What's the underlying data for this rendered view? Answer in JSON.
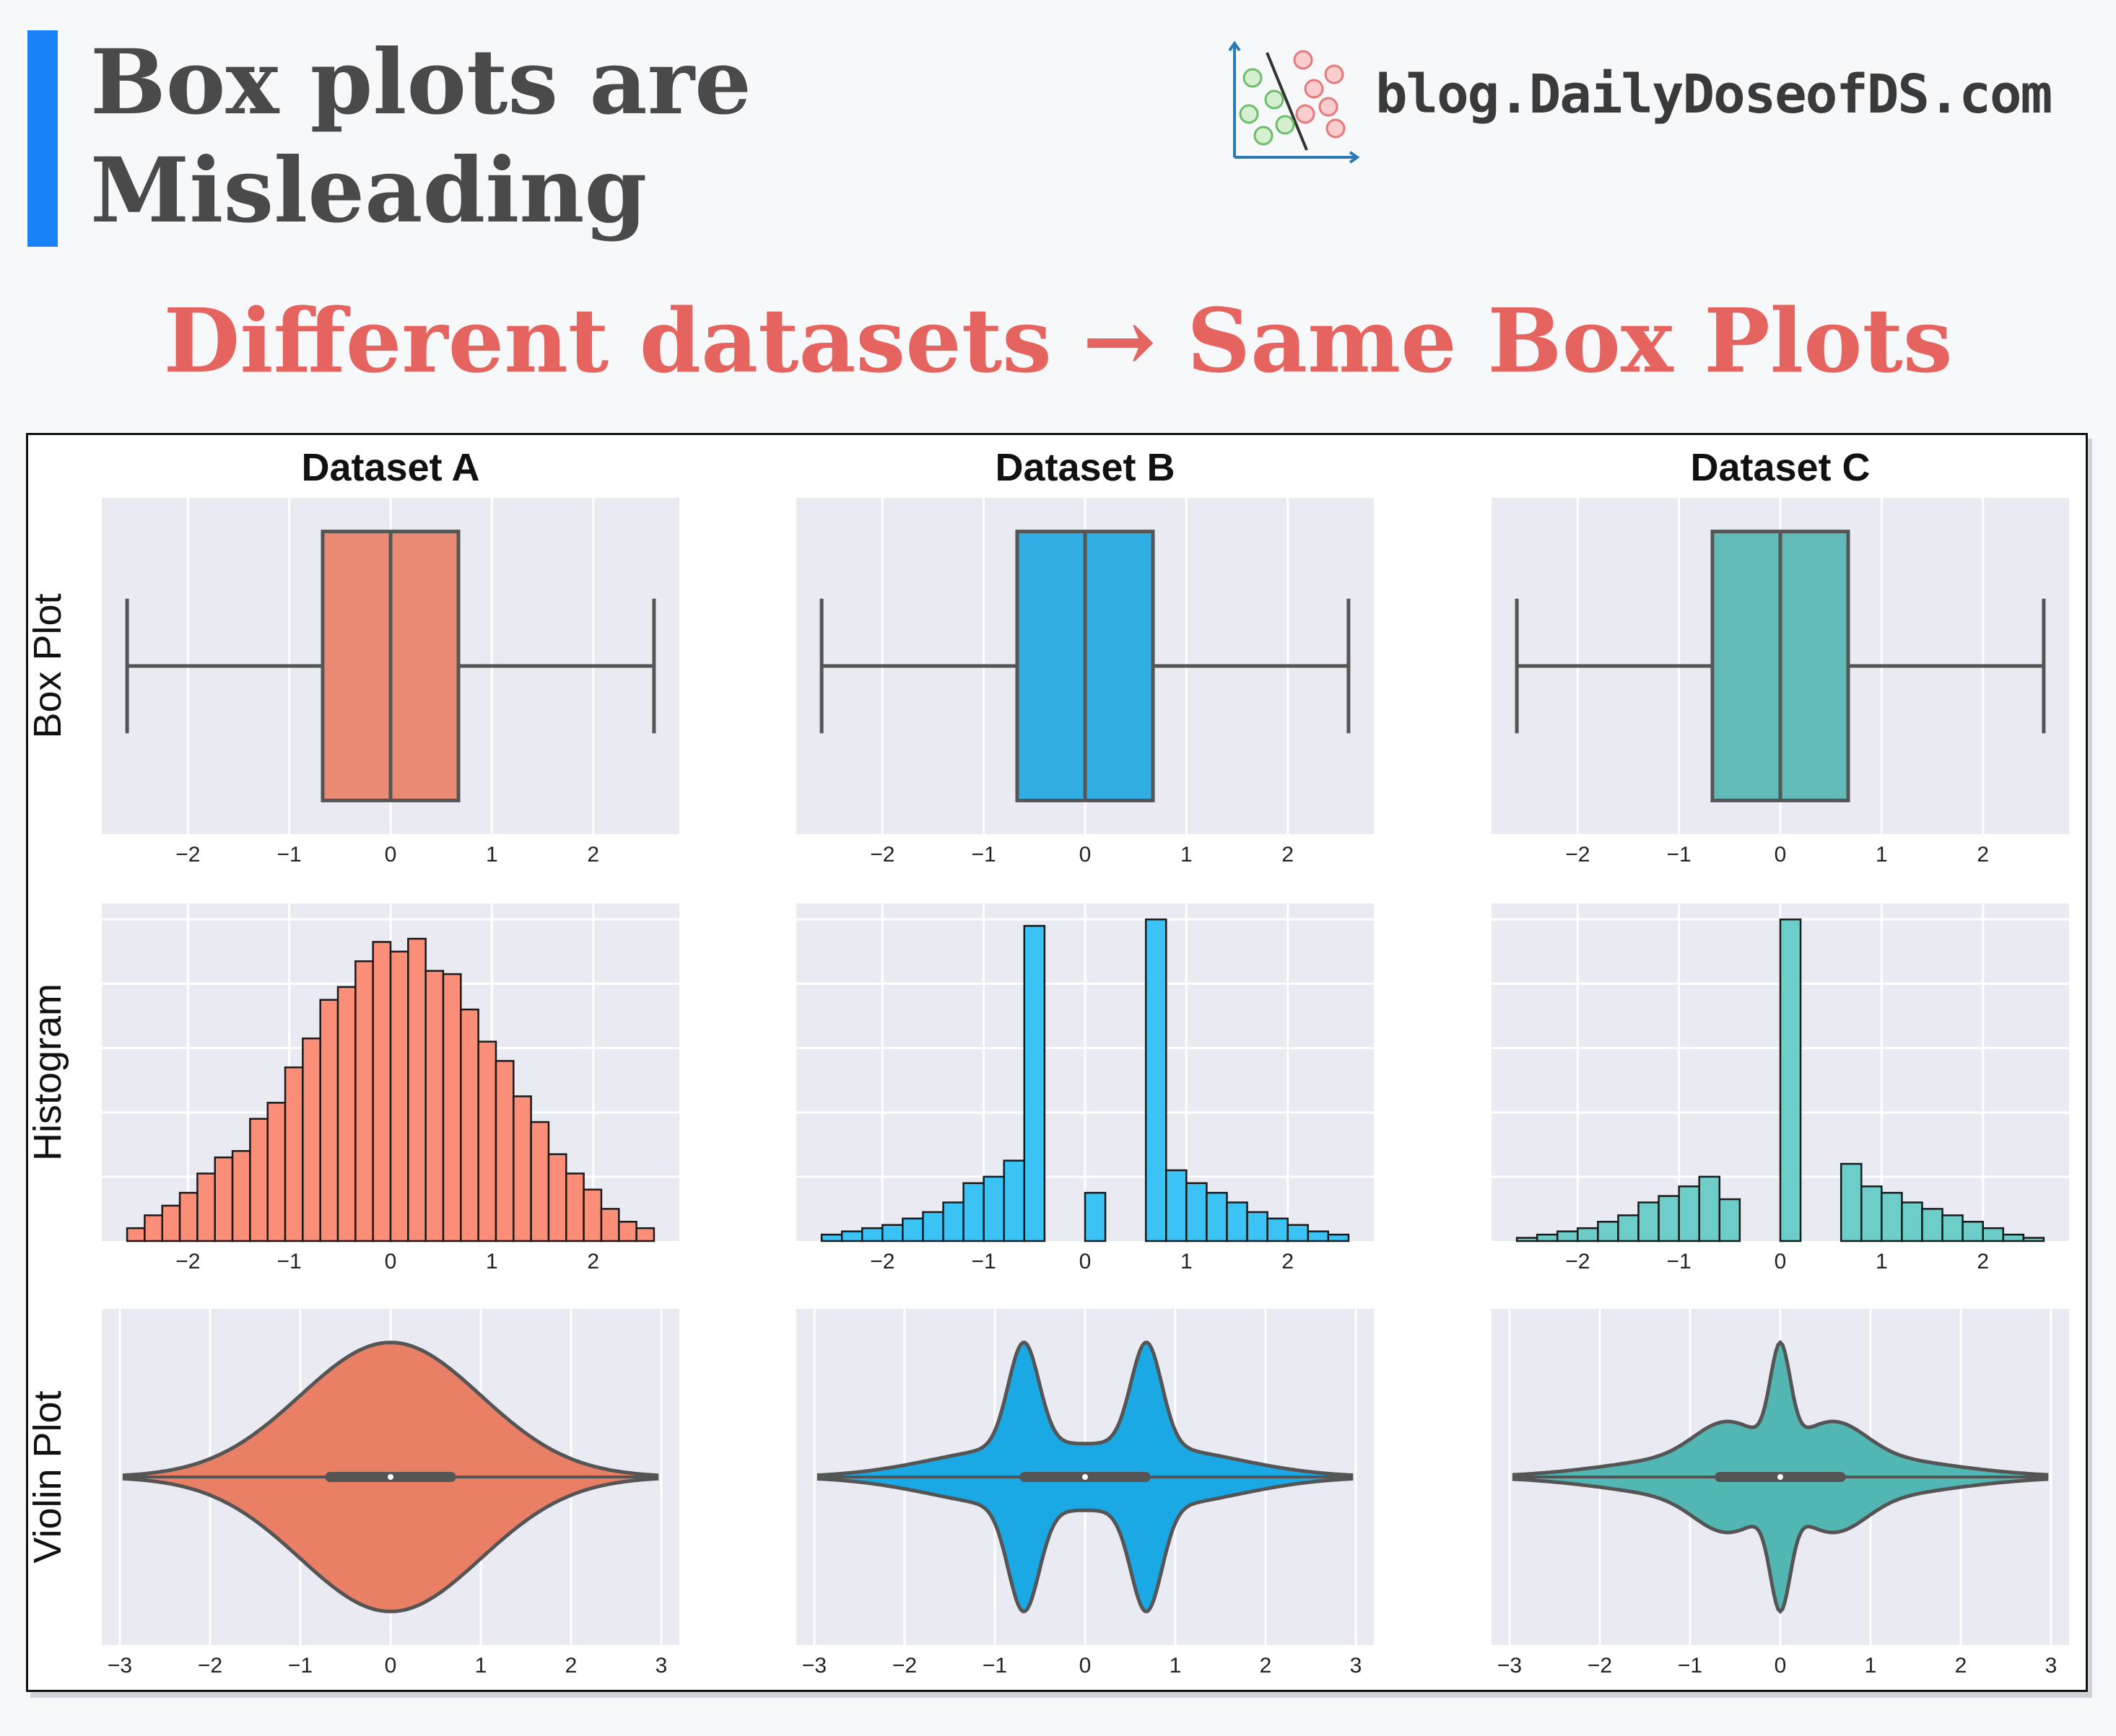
{
  "header": {
    "title": "Box plots are\nMisleading",
    "brand": "blog.DailyDoseofDS.com",
    "subtitle": "Different datasets →  Same Box Plots",
    "accent_color": "#1a82f7",
    "subtitle_color": "#e5645f"
  },
  "chart_data": {
    "type": "panel-grid",
    "columns": [
      {
        "title": "Dataset A",
        "color": "#f4856b",
        "hist_color": "#fa8e78",
        "violin_color": "#e98066",
        "box_color": "#e98a72"
      },
      {
        "title": "Dataset B",
        "color": "#1ba9e5",
        "hist_color": "#3cc3f6",
        "violin_color": "#1ba9e5",
        "box_color": "#31aee3"
      },
      {
        "title": "Dataset C",
        "color": "#5cbcb8",
        "hist_color": "#6dcdc9",
        "violin_color": "#52b6b2",
        "box_color": "#62bbb9"
      }
    ],
    "row_labels": [
      "Box Plot",
      "Histogram",
      "Violin Plot"
    ],
    "box_plot": {
      "x_ticks": [
        "−2",
        "−1",
        "0",
        "1",
        "2"
      ],
      "xlim": [
        -2.85,
        2.85
      ],
      "whisker_low": -2.6,
      "q1": -0.67,
      "median": 0.0,
      "q3": 0.67,
      "whisker_high": 2.6
    },
    "histogram": {
      "x_ticks": [
        "−2",
        "−1",
        "0",
        "1",
        "2"
      ],
      "xlim": [
        -2.85,
        2.85
      ],
      "bin_width": 0.2,
      "bin_start": -2.6,
      "ylim": [
        0,
        1.05
      ],
      "A": [
        0.04,
        0.08,
        0.11,
        0.15,
        0.21,
        0.26,
        0.28,
        0.38,
        0.43,
        0.54,
        0.63,
        0.75,
        0.79,
        0.87,
        0.93,
        0.9,
        0.94,
        0.84,
        0.83,
        0.72,
        0.62,
        0.56,
        0.45,
        0.37,
        0.27,
        0.21,
        0.16,
        0.1,
        0.06,
        0.04
      ],
      "B": [
        0.02,
        0.03,
        0.04,
        0.05,
        0.07,
        0.09,
        0.12,
        0.18,
        0.2,
        0.25,
        0.98,
        0,
        0,
        0.15,
        0,
        0,
        1.0,
        0.22,
        0.18,
        0.15,
        0.12,
        0.09,
        0.07,
        0.05,
        0.03,
        0.02
      ],
      "C": [
        0.01,
        0.02,
        0.03,
        0.04,
        0.06,
        0.08,
        0.12,
        0.14,
        0.17,
        0.2,
        0.13,
        0,
        0,
        1.0,
        0,
        0,
        0.24,
        0.17,
        0.15,
        0.12,
        0.1,
        0.08,
        0.06,
        0.04,
        0.02,
        0.01
      ]
    },
    "violin": {
      "x_ticks": [
        "−3",
        "−2",
        "−1",
        "0",
        "1",
        "2",
        "3"
      ],
      "xlim": [
        -3.2,
        3.2
      ],
      "support": [
        -2.95,
        2.95
      ],
      "q1": -0.67,
      "median": 0.0,
      "q3": 0.67
    }
  }
}
